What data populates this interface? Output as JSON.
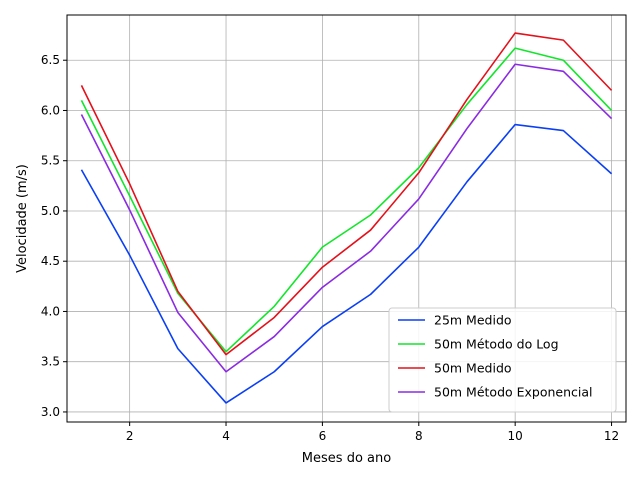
{
  "chart_data": {
    "type": "line",
    "xlabel": "Meses do ano",
    "ylabel": "Velocidade (m/s)",
    "xlim": [
      0.7,
      12.3
    ],
    "ylim": [
      2.9,
      6.95
    ],
    "xticks": [
      2,
      4,
      6,
      8,
      10,
      12
    ],
    "xtick_labels": [
      "2",
      "4",
      "6",
      "8",
      "10",
      "12"
    ],
    "yticks": [
      3.0,
      3.5,
      4.0,
      4.5,
      5.0,
      5.5,
      6.0,
      6.5
    ],
    "ytick_labels": [
      "3.0",
      "3.5",
      "4.0",
      "4.5",
      "5.0",
      "5.5",
      "6.0",
      "6.5"
    ],
    "grid": true,
    "legend_position": "bottom-right",
    "x": [
      1,
      2,
      3,
      4,
      5,
      6,
      7,
      8,
      9,
      10,
      11,
      12
    ],
    "series": [
      {
        "name": "25m Medido",
        "color": "#0a3ff5",
        "values": [
          5.41,
          4.56,
          3.63,
          3.09,
          3.4,
          3.85,
          4.17,
          4.64,
          5.29,
          5.86,
          5.8,
          5.37
        ]
      },
      {
        "name": "50m Método do Log",
        "color": "#12e62b",
        "values": [
          6.1,
          5.15,
          4.18,
          3.6,
          4.05,
          4.64,
          4.96,
          5.43,
          6.06,
          6.62,
          6.5,
          6.0
        ]
      },
      {
        "name": "50m Medido",
        "color": "#e4101a",
        "values": [
          6.25,
          5.27,
          4.2,
          3.57,
          3.94,
          4.44,
          4.81,
          5.38,
          6.11,
          6.77,
          6.7,
          6.2
        ]
      },
      {
        "name": "50m Método Exponencial",
        "color": "#8a2be2",
        "values": [
          5.96,
          5.01,
          3.99,
          3.4,
          3.75,
          4.24,
          4.6,
          5.12,
          5.82,
          6.46,
          6.39,
          5.92
        ]
      }
    ]
  }
}
